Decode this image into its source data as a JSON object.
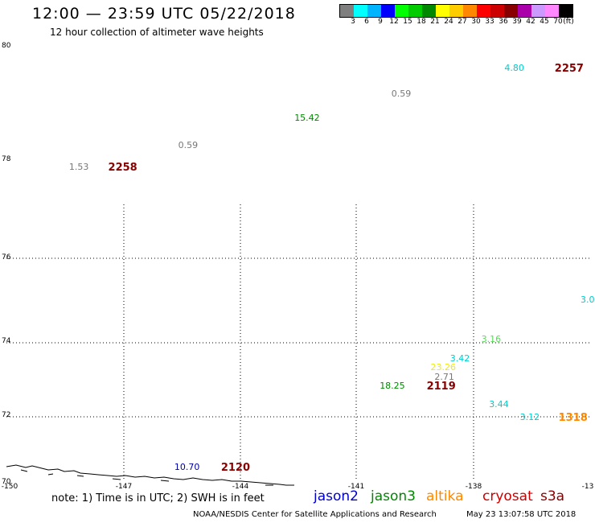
{
  "header": {
    "title": "12:00 — 23:59 UTC 05/22/2018",
    "subtitle": "12 hour collection of altimeter wave heights"
  },
  "colorbar": {
    "colors": [
      "#7f7f7f",
      "#00ffff",
      "#00b4ff",
      "#0000ff",
      "#00ff00",
      "#00cc00",
      "#008800",
      "#ffff00",
      "#ffcc00",
      "#ff8800",
      "#ff0000",
      "#cc0000",
      "#880000",
      "#aa00aa",
      "#cc99ff",
      "#ff88ff",
      "#000000"
    ],
    "labels": [
      "3",
      "6",
      "9",
      "12",
      "15",
      "18",
      "21",
      "24",
      "27",
      "30",
      "33",
      "36",
      "39",
      "42",
      "45",
      "70",
      "(ft)"
    ]
  },
  "axes": {
    "lat_labels": [
      "80",
      "78",
      "76",
      "74",
      "72",
      "70"
    ],
    "lon_labels": [
      "-150",
      "-147",
      "-144",
      "-141",
      "-138",
      "-13"
    ]
  },
  "chart_data": {
    "type": "scatter",
    "x_range": [
      -150,
      -135
    ],
    "y_range": [
      70,
      80
    ],
    "points": [
      {
        "lon": -137.2,
        "lat": 79.6,
        "text": "4.80",
        "color": "#00cccc",
        "kind": "value"
      },
      {
        "lon": -135.9,
        "lat": 79.6,
        "text": "2257",
        "color": "#880000",
        "kind": "pass"
      },
      {
        "lon": -140.1,
        "lat": 79.15,
        "text": "0.59",
        "color": "#777777",
        "kind": "value"
      },
      {
        "lon": -142.6,
        "lat": 78.73,
        "text": "15.42",
        "color": "#008800",
        "kind": "value"
      },
      {
        "lon": -145.6,
        "lat": 78.25,
        "text": "0.59",
        "color": "#777777",
        "kind": "value"
      },
      {
        "lon": -148.4,
        "lat": 77.85,
        "text": "1.53",
        "color": "#777777",
        "kind": "value"
      },
      {
        "lon": -147.4,
        "lat": 77.85,
        "text": "2258",
        "color": "#880000",
        "kind": "pass"
      },
      {
        "lon": -134.8,
        "lat": 75.0,
        "text": "3.0",
        "color": "#00cccc",
        "kind": "value"
      },
      {
        "lon": -137.8,
        "lat": 74.05,
        "text": "3.16",
        "color": "#55dd55",
        "kind": "value"
      },
      {
        "lon": -138.6,
        "lat": 73.55,
        "text": "3.42",
        "color": "#00cccc",
        "kind": "value"
      },
      {
        "lon": -139.1,
        "lat": 73.3,
        "text": "23.26",
        "color": "#eeee00",
        "kind": "value"
      },
      {
        "lon": -139.0,
        "lat": 73.05,
        "text": "2.71",
        "color": "#777777",
        "kind": "value"
      },
      {
        "lon": -140.4,
        "lat": 72.8,
        "text": "18.25",
        "color": "#008800",
        "kind": "value"
      },
      {
        "lon": -139.2,
        "lat": 72.8,
        "text": "2119",
        "color": "#880000",
        "kind": "pass"
      },
      {
        "lon": -137.6,
        "lat": 72.3,
        "text": "3.44",
        "color": "#00cccc",
        "kind": "value"
      },
      {
        "lon": -136.8,
        "lat": 71.95,
        "text": "3.12",
        "color": "#00cccc",
        "kind": "value"
      },
      {
        "lon": -135.8,
        "lat": 71.95,
        "text": "1318",
        "color": "#ff8800",
        "kind": "pass"
      },
      {
        "lon": -145.7,
        "lat": 70.4,
        "text": "10.70",
        "color": "#0000aa",
        "kind": "value"
      },
      {
        "lon": -144.5,
        "lat": 70.4,
        "text": "2120",
        "color": "#880000",
        "kind": "pass"
      }
    ]
  },
  "note": "note: 1) Time is in UTC; 2) SWH is in feet",
  "legend": [
    {
      "label": "jason2",
      "color": "#0000cc"
    },
    {
      "label": "jason3",
      "color": "#008800"
    },
    {
      "label": "altika",
      "color": "#ff8800"
    },
    {
      "label": "cryosat",
      "color": "#cc0000"
    },
    {
      "label": "s3a",
      "color": "#880000"
    }
  ],
  "footer": "NOAA/NESDIS Center for Satellite Applications and Research",
  "timestamp": "May 23 13:07:58 UTC 2018"
}
